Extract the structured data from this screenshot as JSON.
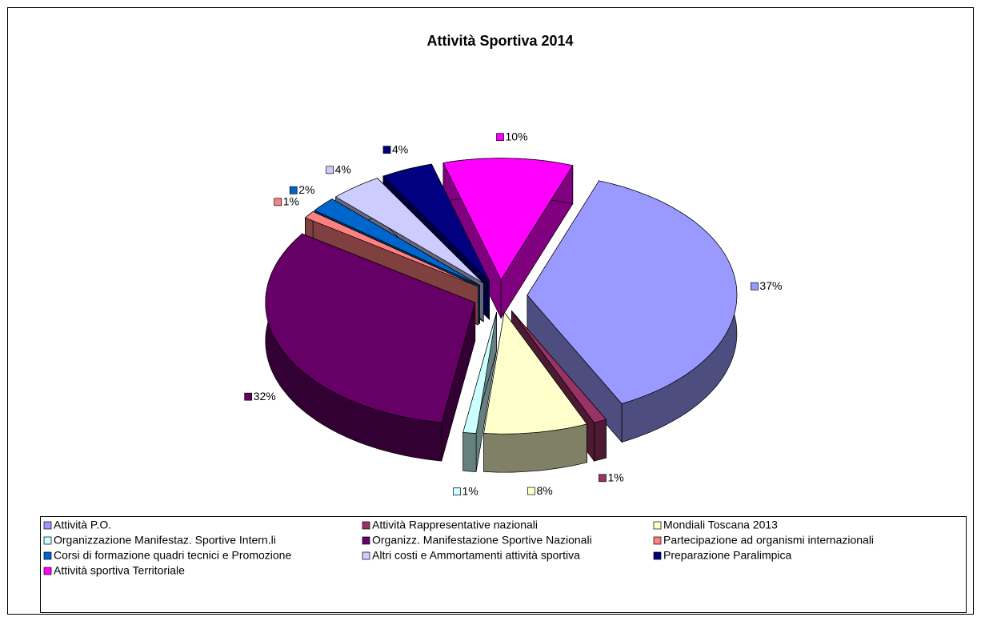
{
  "chart_data": {
    "type": "pie3d",
    "title": "Attività Sportiva 2014",
    "categories": [
      "Attività P.O.",
      "Attività Rappresentative nazionali",
      "Mondiali Toscana 2013",
      "Organizzazione Manifestaz. Sportive Intern.li",
      "Organizz. Manifestazione Sportive Nazionali",
      "Partecipazione ad organismi internazionali",
      "Corsi di formazione quadri tecnici e Promozione",
      "Altri costi e Ammortamenti attività sportiva",
      "Preparazione Paralimpica",
      "Attività sportiva Territoriale"
    ],
    "values": [
      37,
      1,
      8,
      1,
      32,
      1,
      2,
      4,
      4,
      10
    ],
    "value_labels": [
      "37%",
      "1%",
      "8%",
      "1%",
      "32%",
      "1%",
      "2%",
      "4%",
      "4%",
      "10%"
    ],
    "colors": [
      "#9999ff",
      "#993366",
      "#ffffcc",
      "#ccffff",
      "#660066",
      "#ff8080",
      "#0066cc",
      "#ccccff",
      "#000080",
      "#ff00ff"
    ],
    "legend": "bottom"
  }
}
